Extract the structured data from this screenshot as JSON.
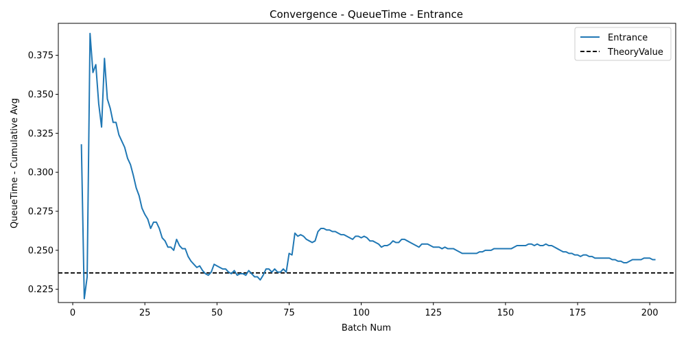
{
  "chart_data": {
    "type": "line",
    "title": "Convergence - QueueTime - Entrance",
    "xlabel": "Batch Num",
    "ylabel": "QueueTime - Cumulative Avg",
    "xlim": [
      -5,
      209
    ],
    "ylim": [
      0.2165,
      0.3955
    ],
    "xticks": [
      0,
      25,
      50,
      75,
      100,
      125,
      150,
      175,
      200
    ],
    "yticks": [
      0.225,
      0.25,
      0.275,
      0.3,
      0.325,
      0.35,
      0.375
    ],
    "ytick_labels": [
      "0.225",
      "0.250",
      "0.275",
      "0.300",
      "0.325",
      "0.350",
      "0.375"
    ],
    "grid": false,
    "legend_position": "top-right",
    "colors": {
      "series": "#1f77b4",
      "theory": "#000000"
    },
    "series": [
      {
        "name": "Entrance",
        "style": "solid",
        "x": [
          3,
          4,
          5,
          6,
          7,
          8,
          9,
          10,
          11,
          12,
          13,
          14,
          15,
          16,
          17,
          18,
          19,
          20,
          21,
          22,
          23,
          24,
          25,
          26,
          27,
          28,
          29,
          30,
          31,
          32,
          33,
          34,
          35,
          36,
          37,
          38,
          39,
          40,
          41,
          42,
          43,
          44,
          45,
          46,
          47,
          48,
          49,
          50,
          51,
          52,
          53,
          54,
          55,
          56,
          57,
          58,
          59,
          60,
          61,
          62,
          63,
          64,
          65,
          66,
          67,
          68,
          69,
          70,
          71,
          72,
          73,
          74,
          75,
          76,
          77,
          78,
          79,
          80,
          81,
          82,
          83,
          84,
          85,
          86,
          87,
          88,
          89,
          90,
          91,
          92,
          93,
          94,
          95,
          96,
          97,
          98,
          99,
          100,
          101,
          102,
          103,
          104,
          105,
          106,
          107,
          108,
          109,
          110,
          111,
          112,
          113,
          114,
          115,
          116,
          117,
          118,
          119,
          120,
          121,
          122,
          123,
          124,
          125,
          126,
          127,
          128,
          129,
          130,
          131,
          132,
          133,
          134,
          135,
          136,
          137,
          138,
          139,
          140,
          141,
          142,
          143,
          144,
          145,
          146,
          147,
          148,
          149,
          150,
          151,
          152,
          153,
          154,
          155,
          156,
          157,
          158,
          159,
          160,
          161,
          162,
          163,
          164,
          165,
          166,
          167,
          168,
          169,
          170,
          171,
          172,
          173,
          174,
          175,
          176,
          177,
          178,
          179,
          180,
          181,
          182,
          183,
          184,
          185,
          186,
          187,
          188,
          189,
          190,
          191,
          192,
          193,
          194,
          195,
          196,
          197,
          198,
          199,
          200,
          201,
          202
        ],
        "y": [
          0.318,
          0.219,
          0.233,
          0.389,
          0.364,
          0.369,
          0.344,
          0.329,
          0.373,
          0.347,
          0.341,
          0.332,
          0.332,
          0.324,
          0.32,
          0.316,
          0.309,
          0.305,
          0.298,
          0.29,
          0.285,
          0.277,
          0.273,
          0.27,
          0.264,
          0.268,
          0.268,
          0.264,
          0.258,
          0.256,
          0.252,
          0.252,
          0.25,
          0.257,
          0.253,
          0.251,
          0.251,
          0.246,
          0.243,
          0.241,
          0.239,
          0.24,
          0.237,
          0.235,
          0.234,
          0.236,
          0.241,
          0.24,
          0.239,
          0.238,
          0.238,
          0.236,
          0.235,
          0.237,
          0.234,
          0.235,
          0.235,
          0.234,
          0.237,
          0.235,
          0.233,
          0.233,
          0.231,
          0.234,
          0.238,
          0.238,
          0.236,
          0.238,
          0.236,
          0.236,
          0.238,
          0.236,
          0.248,
          0.247,
          0.261,
          0.259,
          0.26,
          0.259,
          0.257,
          0.256,
          0.255,
          0.256,
          0.262,
          0.264,
          0.264,
          0.263,
          0.263,
          0.262,
          0.262,
          0.261,
          0.26,
          0.26,
          0.259,
          0.258,
          0.257,
          0.259,
          0.259,
          0.258,
          0.259,
          0.258,
          0.256,
          0.256,
          0.255,
          0.254,
          0.252,
          0.253,
          0.253,
          0.254,
          0.256,
          0.255,
          0.255,
          0.257,
          0.257,
          0.256,
          0.255,
          0.254,
          0.253,
          0.252,
          0.254,
          0.254,
          0.254,
          0.253,
          0.252,
          0.252,
          0.252,
          0.251,
          0.252,
          0.251,
          0.251,
          0.251,
          0.25,
          0.249,
          0.248,
          0.248,
          0.248,
          0.248,
          0.248,
          0.248,
          0.249,
          0.249,
          0.25,
          0.25,
          0.25,
          0.251,
          0.251,
          0.251,
          0.251,
          0.251,
          0.251,
          0.251,
          0.252,
          0.253,
          0.253,
          0.253,
          0.253,
          0.254,
          0.254,
          0.253,
          0.254,
          0.253,
          0.253,
          0.254,
          0.253,
          0.253,
          0.252,
          0.251,
          0.25,
          0.249,
          0.249,
          0.248,
          0.248,
          0.247,
          0.247,
          0.246,
          0.247,
          0.247,
          0.246,
          0.246,
          0.245,
          0.245,
          0.245,
          0.245,
          0.245,
          0.245,
          0.244,
          0.244,
          0.243,
          0.243,
          0.242,
          0.242,
          0.243,
          0.244,
          0.244,
          0.244,
          0.244,
          0.245,
          0.245,
          0.245,
          0.244,
          0.244
        ]
      },
      {
        "name": "TheoryValue",
        "style": "dashed",
        "constant": 0.2355
      }
    ]
  }
}
